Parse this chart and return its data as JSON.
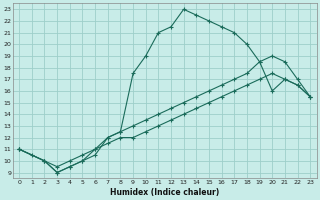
{
  "xlabel": "Humidex (Indice chaleur)",
  "bg_color": "#c8ece8",
  "grid_color": "#9dcfca",
  "line_color": "#1a6b5a",
  "xlim": [
    -0.5,
    23.5
  ],
  "ylim": [
    8.5,
    23.5
  ],
  "xticks": [
    0,
    1,
    2,
    3,
    4,
    5,
    6,
    7,
    8,
    9,
    10,
    11,
    12,
    13,
    14,
    15,
    16,
    17,
    18,
    19,
    20,
    21,
    22,
    23
  ],
  "yticks": [
    9,
    10,
    11,
    12,
    13,
    14,
    15,
    16,
    17,
    18,
    19,
    20,
    21,
    22,
    23
  ],
  "line1_x": [
    0,
    1,
    2,
    3,
    4,
    5,
    6,
    7,
    8,
    9,
    10,
    11,
    12,
    13,
    14,
    15,
    16,
    17,
    18,
    19,
    20,
    21,
    22,
    23
  ],
  "line1_y": [
    11,
    10.5,
    10,
    9,
    9.5,
    10,
    10.5,
    12,
    12.5,
    17.5,
    19.0,
    21,
    21.5,
    23,
    22.5,
    22,
    21.5,
    21,
    20,
    18.5,
    16,
    17,
    16.5,
    15.5
  ],
  "line2_x": [
    0,
    2,
    3,
    4,
    5,
    6,
    7,
    8,
    9,
    10,
    11,
    12,
    13,
    14,
    15,
    16,
    17,
    18,
    19,
    20,
    21,
    22,
    23
  ],
  "line2_y": [
    11,
    10,
    9.5,
    10,
    10.5,
    11,
    12,
    12.5,
    13,
    13.5,
    14,
    14.5,
    15,
    15.5,
    16,
    16.5,
    17,
    17.5,
    18.5,
    19,
    18.5,
    17,
    15.5
  ],
  "line3_x": [
    0,
    2,
    3,
    4,
    5,
    6,
    7,
    8,
    9,
    10,
    11,
    12,
    13,
    14,
    15,
    16,
    17,
    18,
    19,
    20,
    21,
    22,
    23
  ],
  "line3_y": [
    11,
    10,
    9,
    9.5,
    10,
    11,
    11.5,
    12,
    12,
    12.5,
    13,
    13.5,
    14,
    14.5,
    15,
    15.5,
    16,
    16.5,
    17,
    17.5,
    17,
    16.5,
    15.5
  ]
}
